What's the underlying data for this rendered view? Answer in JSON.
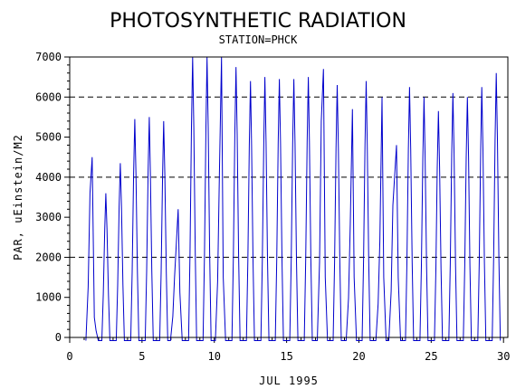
{
  "chart_data": {
    "type": "line",
    "title": "PHOTOSYNTHETIC RADIATION",
    "subtitle": "STATION=PHCK",
    "xlabel": "JUL 1995",
    "ylabel": "PAR, uEinstein/M2",
    "xlim": [
      0,
      30.3
    ],
    "ylim": [
      0,
      7000
    ],
    "xticks": [
      0,
      5,
      10,
      15,
      20,
      25,
      30
    ],
    "yticks": [
      0,
      1000,
      2000,
      3000,
      4000,
      5000,
      6000,
      7000
    ],
    "reference_lines_y": [
      2000,
      4000,
      6000
    ],
    "series_color": "#0000cc",
    "daily_peaks": [
      {
        "day": 1,
        "peaks": [
          [
            1.4,
            3600
          ],
          [
            1.55,
            4500
          ],
          [
            1.7,
            500
          ]
        ]
      },
      {
        "day": 2,
        "peaks": [
          [
            2.5,
            3600
          ]
        ]
      },
      {
        "day": 3,
        "peaks": [
          [
            3.5,
            4350
          ]
        ]
      },
      {
        "day": 4,
        "peaks": [
          [
            4.5,
            5450
          ]
        ]
      },
      {
        "day": 5,
        "peaks": [
          [
            5.5,
            5500
          ]
        ]
      },
      {
        "day": 6,
        "peaks": [
          [
            6.5,
            5400
          ]
        ]
      },
      {
        "day": 7,
        "peaks": [
          [
            7.25,
            1500
          ],
          [
            7.5,
            3200
          ]
        ]
      },
      {
        "day": 8,
        "peaks": [
          [
            8.5,
            7000
          ]
        ]
      },
      {
        "day": 9,
        "peaks": [
          [
            9.5,
            7000
          ]
        ]
      },
      {
        "day": 10,
        "peaks": [
          [
            10.35,
            4000
          ],
          [
            10.5,
            7000
          ]
        ]
      },
      {
        "day": 11,
        "peaks": [
          [
            11.5,
            6750
          ]
        ]
      },
      {
        "day": 12,
        "peaks": [
          [
            12.5,
            6400
          ]
        ]
      },
      {
        "day": 13,
        "peaks": [
          [
            13.5,
            6500
          ]
        ]
      },
      {
        "day": 14,
        "peaks": [
          [
            14.5,
            6450
          ]
        ]
      },
      {
        "day": 15,
        "peaks": [
          [
            15.5,
            6450
          ]
        ]
      },
      {
        "day": 16,
        "peaks": [
          [
            16.5,
            6500
          ]
        ]
      },
      {
        "day": 17,
        "peaks": [
          [
            17.4,
            5400
          ],
          [
            17.55,
            6700
          ]
        ]
      },
      {
        "day": 18,
        "peaks": [
          [
            18.5,
            6300
          ]
        ]
      },
      {
        "day": 19,
        "peaks": [
          [
            19.4,
            2800
          ],
          [
            19.55,
            5700
          ]
        ]
      },
      {
        "day": 20,
        "peaks": [
          [
            20.5,
            6400
          ]
        ]
      },
      {
        "day": 21,
        "peaks": [
          [
            21.45,
            2400
          ],
          [
            21.6,
            6000
          ]
        ]
      },
      {
        "day": 22,
        "peaks": [
          [
            22.35,
            3300
          ],
          [
            22.6,
            4800
          ]
        ]
      },
      {
        "day": 23,
        "peaks": [
          [
            23.5,
            6250
          ]
        ]
      },
      {
        "day": 24,
        "peaks": [
          [
            24.5,
            6000
          ]
        ]
      },
      {
        "day": 25,
        "peaks": [
          [
            25.5,
            5650
          ]
        ]
      },
      {
        "day": 26,
        "peaks": [
          [
            26.5,
            6100
          ]
        ]
      },
      {
        "day": 27,
        "peaks": [
          [
            27.5,
            6000
          ]
        ]
      },
      {
        "day": 28,
        "peaks": [
          [
            28.5,
            6250
          ]
        ]
      },
      {
        "day": 29,
        "peaks": [
          [
            29.5,
            6600
          ]
        ]
      }
    ]
  }
}
